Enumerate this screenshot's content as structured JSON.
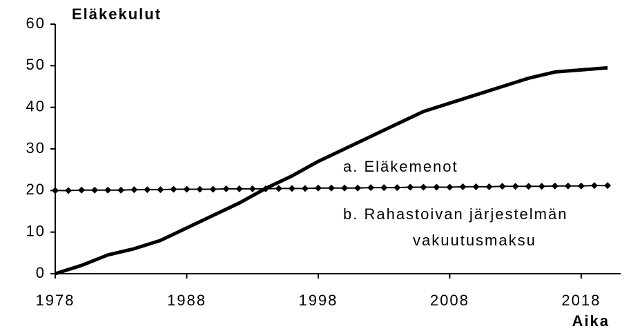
{
  "chart_data": {
    "type": "line",
    "title": "Eläkekulut",
    "x_label": "Aika",
    "annotations": [
      "a. Eläkemenot",
      "b. Rahastoivan järjestelmän",
      "vakuutusmaksu"
    ],
    "xlim": [
      1978,
      2021
    ],
    "xticks": [
      1978,
      1988,
      1998,
      2008,
      2018
    ],
    "ylim": [
      0,
      60
    ],
    "yticks": [
      0,
      10,
      20,
      30,
      40,
      50,
      60
    ],
    "series": [
      {
        "color": "#000000",
        "marker": "none",
        "x": [
          1978,
          1980,
          1982,
          1984,
          1986,
          1988,
          1990,
          1992,
          1994,
          1996,
          1998,
          2000,
          2002,
          2004,
          2006,
          2008,
          2010,
          2012,
          2014,
          2016,
          2018,
          2020
        ],
        "values": [
          0,
          2,
          4.5,
          6,
          8,
          11,
          14,
          17,
          20.5,
          23.5,
          27,
          30,
          33,
          36,
          39,
          41,
          43,
          45,
          47,
          48.5,
          49,
          49.5
        ]
      },
      {
        "color": "#000000",
        "marker": "diamond",
        "x": [
          1978,
          1979,
          1980,
          1981,
          1982,
          1983,
          1984,
          1985,
          1986,
          1987,
          1988,
          1989,
          1990,
          1991,
          1992,
          1993,
          1994,
          1995,
          1996,
          1997,
          1998,
          1999,
          2000,
          2001,
          2002,
          2003,
          2004,
          2005,
          2006,
          2007,
          2008,
          2009,
          2010,
          2011,
          2012,
          2013,
          2014,
          2015,
          2016,
          2017,
          2018,
          2019,
          2020
        ],
        "values": [
          20.0,
          20.0,
          20.1,
          20.1,
          20.1,
          20.1,
          20.2,
          20.2,
          20.2,
          20.3,
          20.3,
          20.3,
          20.3,
          20.4,
          20.4,
          20.4,
          20.4,
          20.5,
          20.5,
          20.5,
          20.6,
          20.6,
          20.6,
          20.6,
          20.7,
          20.7,
          20.7,
          20.8,
          20.8,
          20.8,
          20.8,
          20.9,
          20.9,
          20.9,
          21.0,
          21.0,
          21.0,
          21.0,
          21.1,
          21.1,
          21.1,
          21.2,
          21.2
        ]
      }
    ]
  }
}
